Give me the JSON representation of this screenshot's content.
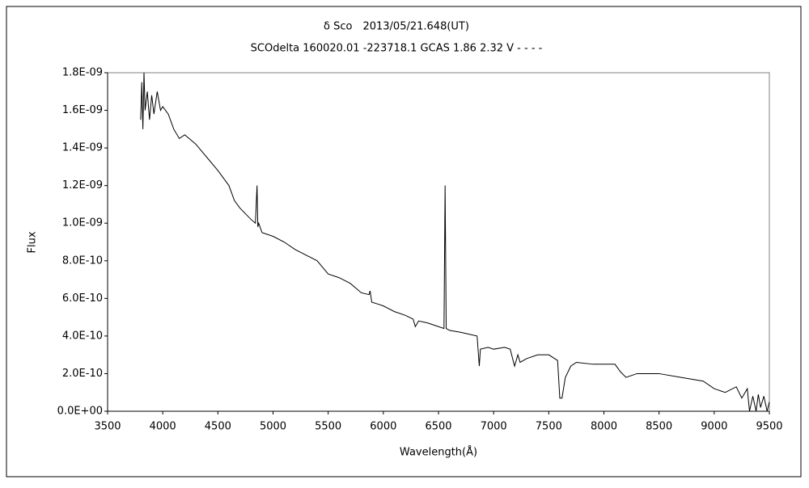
{
  "chart_data": {
    "type": "line",
    "title": "δ Sco　2013/05/21.648(UT)",
    "subtitle": "SCOdelta 160020.01 -223718.1 GCAS 1.86 2.32 V - - - -",
    "x_label": "Wavelength(Å)",
    "y_label": "Flux",
    "color": "#000000",
    "x": [
      3800,
      3810,
      3820,
      3830,
      3840,
      3860,
      3880,
      3900,
      3920,
      3950,
      3980,
      4000,
      4050,
      4100,
      4150,
      4200,
      4300,
      4400,
      4500,
      4600,
      4650,
      4700,
      4750,
      4800,
      4840,
      4855,
      4862,
      4870,
      4900,
      5000,
      5100,
      5200,
      5300,
      5400,
      5500,
      5600,
      5700,
      5800,
      5870,
      5880,
      5895,
      5950,
      6000,
      6100,
      6200,
      6270,
      6290,
      6320,
      6400,
      6500,
      6550,
      6560,
      6570,
      6600,
      6700,
      6850,
      6870,
      6880,
      6950,
      7000,
      7100,
      7150,
      7190,
      7220,
      7240,
      7300,
      7400,
      7500,
      7580,
      7600,
      7620,
      7650,
      7700,
      7750,
      7900,
      8100,
      8150,
      8200,
      8300,
      8500,
      8700,
      8900,
      9000,
      9100,
      9200,
      9250,
      9300,
      9320,
      9350,
      9380,
      9400,
      9420,
      9450,
      9480,
      9500
    ],
    "y": [
      1.55e-09,
      1.75e-09,
      1.5e-09,
      1.8e-09,
      1.6e-09,
      1.7e-09,
      1.55e-09,
      1.68e-09,
      1.58e-09,
      1.7e-09,
      1.6e-09,
      1.62e-09,
      1.58e-09,
      1.5e-09,
      1.45e-09,
      1.47e-09,
      1.42e-09,
      1.35e-09,
      1.28e-09,
      1.2e-09,
      1.12e-09,
      1.08e-09,
      1.05e-09,
      1.02e-09,
      1e-09,
      1.2e-09,
      9.8e-10,
      1e-09,
      9.5e-10,
      9.3e-10,
      9e-10,
      8.6e-10,
      8.3e-10,
      8e-10,
      7.3e-10,
      7.1e-10,
      6.8e-10,
      6.3e-10,
      6.2e-10,
      6.4e-10,
      5.8e-10,
      5.7e-10,
      5.6e-10,
      5.3e-10,
      5.1e-10,
      4.9e-10,
      4.5e-10,
      4.8e-10,
      4.7e-10,
      4.5e-10,
      4.4e-10,
      1.2e-09,
      4.4e-10,
      4.3e-10,
      4.2e-10,
      4e-10,
      2.4e-10,
      3.3e-10,
      3.4e-10,
      3.3e-10,
      3.4e-10,
      3.3e-10,
      2.4e-10,
      3e-10,
      2.6e-10,
      2.8e-10,
      3e-10,
      3e-10,
      2.7e-10,
      7e-11,
      7e-11,
      1.8e-10,
      2.4e-10,
      2.6e-10,
      2.5e-10,
      2.5e-10,
      2.1e-10,
      1.8e-10,
      2e-10,
      2e-10,
      1.8e-10,
      1.6e-10,
      1.2e-10,
      1e-10,
      1.3e-10,
      7e-11,
      1.2e-10,
      0,
      8e-11,
      0,
      9e-11,
      2e-11,
      8e-11,
      0,
      5e-11
    ],
    "xlim": [
      3500,
      9500
    ],
    "xticks": [
      3500,
      4000,
      4500,
      5000,
      5500,
      6000,
      6500,
      7000,
      7500,
      8000,
      8500,
      9000,
      9500
    ],
    "ylim": [
      0,
      1.8e-09
    ],
    "yticks": [
      {
        "value": 0,
        "label": "0.0E+00"
      },
      {
        "value": 2e-10,
        "label": "2.0E-10"
      },
      {
        "value": 4e-10,
        "label": "4.0E-10"
      },
      {
        "value": 6e-10,
        "label": "6.0E-10"
      },
      {
        "value": 8e-10,
        "label": "8.0E-10"
      },
      {
        "value": 1e-09,
        "label": "1.0E-09"
      },
      {
        "value": 1.2e-09,
        "label": "1.2E-09"
      },
      {
        "value": 1.4e-09,
        "label": "1.4E-09"
      },
      {
        "value": 1.6e-09,
        "label": "1.6E-09"
      },
      {
        "value": 1.8e-09,
        "label": "1.8E-09"
      }
    ],
    "grid": false
  }
}
